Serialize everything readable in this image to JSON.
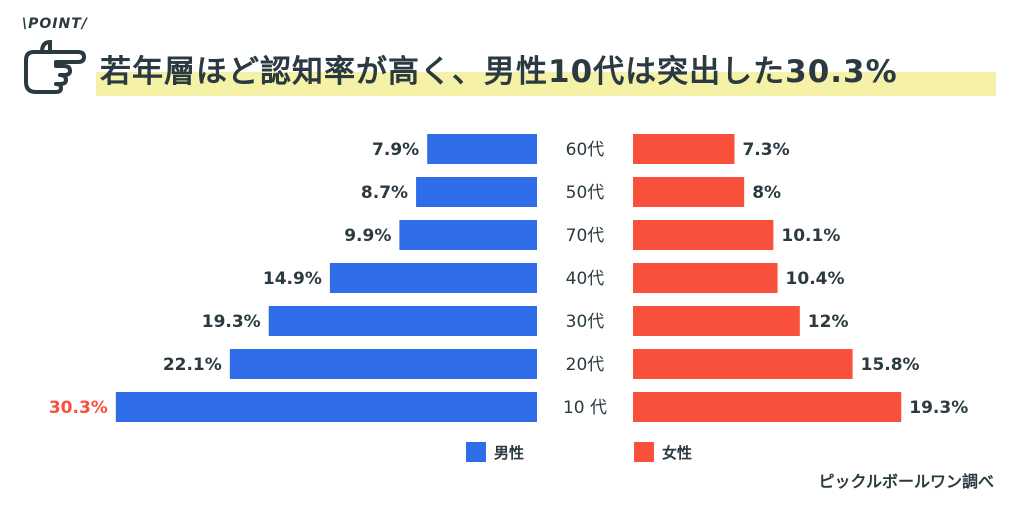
{
  "header": {
    "badge": "\\POINT/",
    "title": "若年層ほど認知率が高く、男性10代は突出した30.3%"
  },
  "source": "ピックルボールワン調べ",
  "colors": {
    "male": "#2f6ee8",
    "female": "#f9503b",
    "highlight_label": "#f9503b",
    "text": "#2b3a40",
    "title_highlight": "#f5f1a6"
  },
  "chart_data": {
    "type": "bar",
    "orientation": "horizontal-butterfly",
    "categories": [
      "60代",
      "50代",
      "70代",
      "40代",
      "30代",
      "20代",
      "10 代"
    ],
    "series": [
      {
        "name": "男性",
        "values": [
          7.9,
          8.7,
          9.9,
          14.9,
          19.3,
          22.1,
          30.3
        ],
        "labels": [
          "7.9%",
          "8.7%",
          "9.9%",
          "14.9%",
          "19.3%",
          "22.1%",
          "30.3%"
        ]
      },
      {
        "name": "女性",
        "values": [
          7.3,
          8,
          10.1,
          10.4,
          12,
          15.8,
          19.3
        ],
        "labels": [
          "7.3%",
          "8%",
          "10.1%",
          "10.4%",
          "12%",
          "15.8%",
          "19.3%"
        ]
      }
    ],
    "highlight": {
      "series": 0,
      "index": 6
    },
    "legend": "bottom"
  }
}
